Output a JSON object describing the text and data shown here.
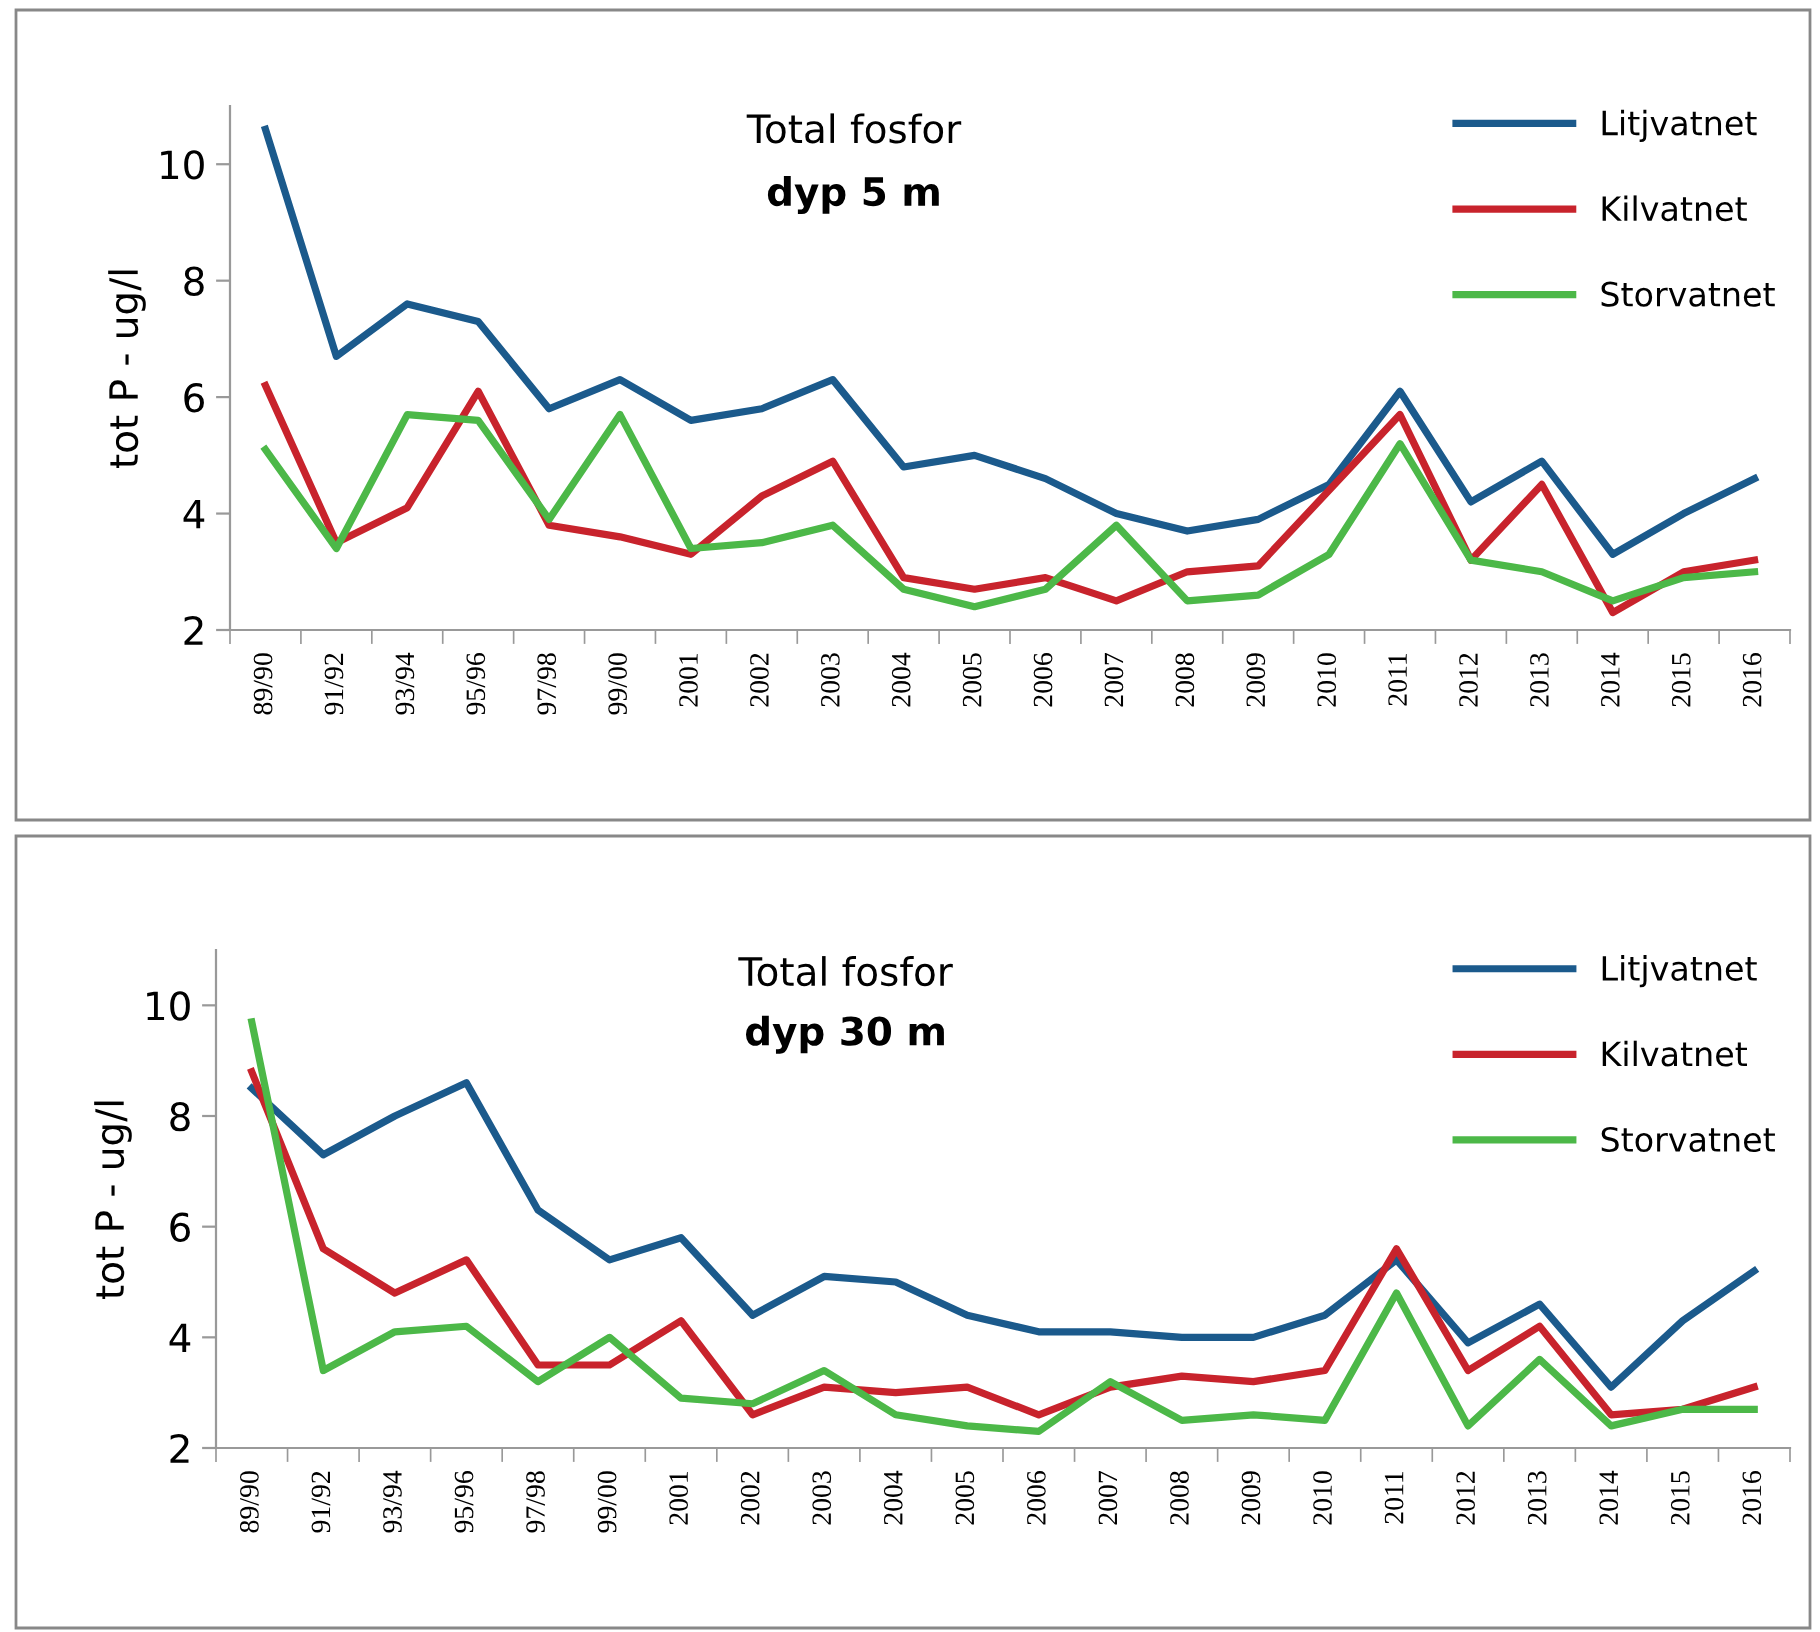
{
  "chart_data": [
    {
      "type": "line",
      "title": "Total fosfor",
      "subtitle": "dyp 5 m",
      "ylabel": "tot P - ug/l",
      "categories": [
        "89/90",
        "91/92",
        "93/94",
        "95/96",
        "97/98",
        "99/00",
        "2001",
        "2002",
        "2003",
        "2004",
        "2005",
        "2006",
        "2007",
        "2008",
        "2009",
        "2010",
        "2011",
        "2012",
        "2013",
        "2014",
        "2015",
        "2016"
      ],
      "series": [
        {
          "name": "Litjvatnet",
          "color": "#1b5a8c",
          "values": [
            10.6,
            6.7,
            7.6,
            7.3,
            5.8,
            6.3,
            5.6,
            5.8,
            6.3,
            4.8,
            5.0,
            4.6,
            4.0,
            3.7,
            3.9,
            4.5,
            6.1,
            4.2,
            4.9,
            3.3,
            4.0,
            4.6
          ]
        },
        {
          "name": "Kilvatnet",
          "color": "#c8232c",
          "values": [
            6.2,
            3.5,
            4.1,
            6.1,
            3.8,
            3.6,
            3.3,
            4.3,
            4.9,
            2.9,
            2.7,
            2.9,
            2.5,
            3.0,
            3.1,
            4.4,
            5.7,
            3.2,
            4.5,
            2.3,
            3.0,
            3.2
          ]
        },
        {
          "name": "Storvatnet",
          "color": "#4cb848",
          "values": [
            5.1,
            3.4,
            5.7,
            5.6,
            3.9,
            5.7,
            3.4,
            3.5,
            3.8,
            2.7,
            2.4,
            2.7,
            3.8,
            2.5,
            2.6,
            3.3,
            5.2,
            3.2,
            3.0,
            2.5,
            2.9,
            3.0
          ]
        }
      ],
      "ylim": [
        2,
        11
      ],
      "yticks": [
        2,
        4,
        6,
        8,
        10
      ],
      "grid": false,
      "legend": "top right",
      "marker": "none",
      "line_style": "solid"
    },
    {
      "type": "line",
      "title": "Total fosfor",
      "subtitle": "dyp 30 m",
      "ylabel": "tot P - ug/l",
      "categories": [
        "89/90",
        "91/92",
        "93/94",
        "95/96",
        "97/98",
        "99/00",
        "2001",
        "2002",
        "2003",
        "2004",
        "2005",
        "2006",
        "2007",
        "2008",
        "2009",
        "2010",
        "2011",
        "2012",
        "2013",
        "2014",
        "2015",
        "2016"
      ],
      "series": [
        {
          "name": "Litjvatnet",
          "color": "#1b5a8c",
          "values": [
            8.5,
            7.3,
            8.0,
            8.6,
            6.3,
            5.4,
            5.8,
            4.4,
            5.1,
            5.0,
            4.4,
            4.1,
            4.1,
            4.0,
            4.0,
            4.4,
            5.4,
            3.9,
            4.6,
            3.1,
            4.3,
            5.2
          ]
        },
        {
          "name": "Kilvatnet",
          "color": "#c8232c",
          "values": [
            8.8,
            5.6,
            4.8,
            5.4,
            3.5,
            3.5,
            4.3,
            2.6,
            3.1,
            3.0,
            3.1,
            2.6,
            3.1,
            3.3,
            3.2,
            3.4,
            5.6,
            3.4,
            4.2,
            2.6,
            2.7,
            3.1
          ]
        },
        {
          "name": "Storvatnet",
          "color": "#4cb848",
          "values": [
            9.7,
            3.4,
            4.1,
            4.2,
            3.2,
            4.0,
            2.9,
            2.8,
            3.4,
            2.6,
            2.4,
            2.3,
            3.2,
            2.5,
            2.6,
            2.5,
            4.8,
            2.4,
            3.6,
            2.4,
            2.7,
            2.7
          ]
        }
      ],
      "ylim": [
        2,
        11
      ],
      "yticks": [
        2,
        4,
        6,
        8,
        10
      ],
      "grid": false,
      "legend": "top right",
      "marker": "none",
      "line_style": "solid"
    }
  ]
}
